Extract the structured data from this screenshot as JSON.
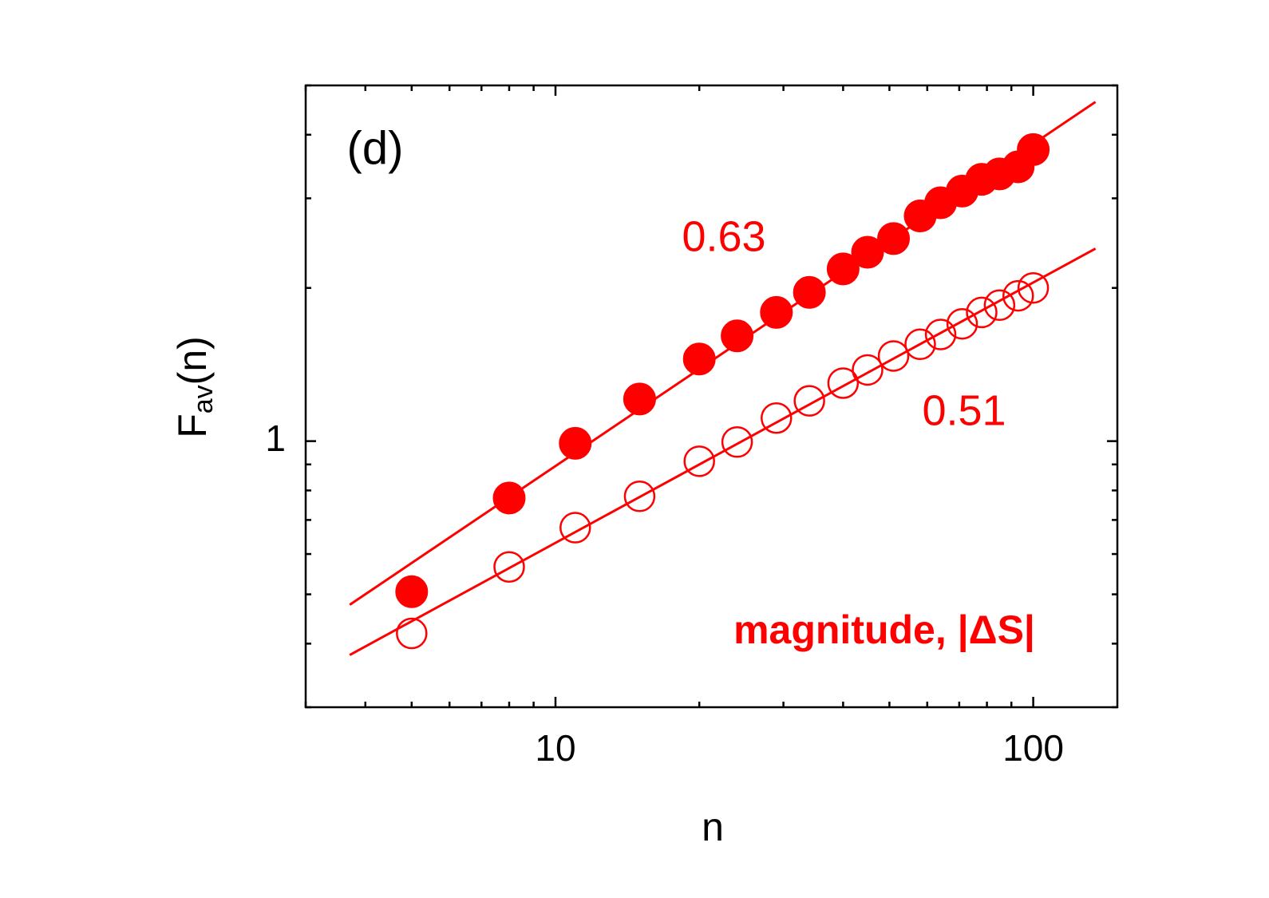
{
  "chart_data": {
    "type": "scatter",
    "xlabel": "n",
    "ylabel": {
      "main": "F",
      "sub": "av",
      "tail": "(n)"
    },
    "xscale": "log",
    "yscale": "log",
    "xlim": [
      3,
      150
    ],
    "ylim": [
      0.3,
      5
    ],
    "xticks": [
      10,
      100
    ],
    "yticks": [
      1
    ],
    "minor_xticks": [
      3,
      4,
      5,
      6,
      7,
      8,
      9,
      20,
      30,
      40,
      50,
      60,
      70,
      80,
      90
    ],
    "minor_yticks": [
      0.3,
      0.4,
      0.5,
      0.6,
      0.7,
      0.8,
      0.9,
      2,
      3,
      4,
      5
    ],
    "annotations": [
      {
        "text": "(d)",
        "color": "#000000",
        "bold": false
      },
      {
        "text": "0.63",
        "color": "#ff0000",
        "bold": false
      },
      {
        "text": "0.51",
        "color": "#ff0000",
        "bold": false
      },
      {
        "text": "magnitude, |ΔS|",
        "color": "#ff0000",
        "bold": true
      }
    ],
    "series": [
      {
        "name": "filled",
        "marker": "filled",
        "color": "#ff0000",
        "x": [
          5,
          8,
          11,
          15,
          20,
          24,
          29,
          34,
          40,
          45,
          51,
          58,
          64,
          71,
          78,
          85,
          93,
          100
        ],
        "values": [
          0.506,
          0.773,
          0.99,
          1.21,
          1.45,
          1.61,
          1.79,
          1.96,
          2.18,
          2.35,
          2.5,
          2.77,
          2.94,
          3.1,
          3.27,
          3.35,
          3.46,
          3.74
        ]
      },
      {
        "name": "open",
        "marker": "open",
        "color": "#ff0000",
        "x": [
          5,
          8,
          11,
          15,
          20,
          24,
          29,
          34,
          40,
          45,
          51,
          58,
          64,
          71,
          78,
          85,
          93,
          100
        ],
        "values": [
          0.419,
          0.566,
          0.676,
          0.779,
          0.913,
          0.996,
          1.11,
          1.2,
          1.3,
          1.38,
          1.47,
          1.55,
          1.62,
          1.7,
          1.79,
          1.85,
          1.93,
          2.0
        ]
      },
      {
        "name": "fit 0.63",
        "marker": "line",
        "color": "#ff0000",
        "x": [
          3.71,
          135
        ],
        "values": [
          0.477,
          4.64
        ]
      },
      {
        "name": "fit 0.51",
        "marker": "line",
        "color": "#ff0000",
        "x": [
          3.71,
          135
        ],
        "values": [
          0.38,
          2.39
        ]
      }
    ]
  }
}
